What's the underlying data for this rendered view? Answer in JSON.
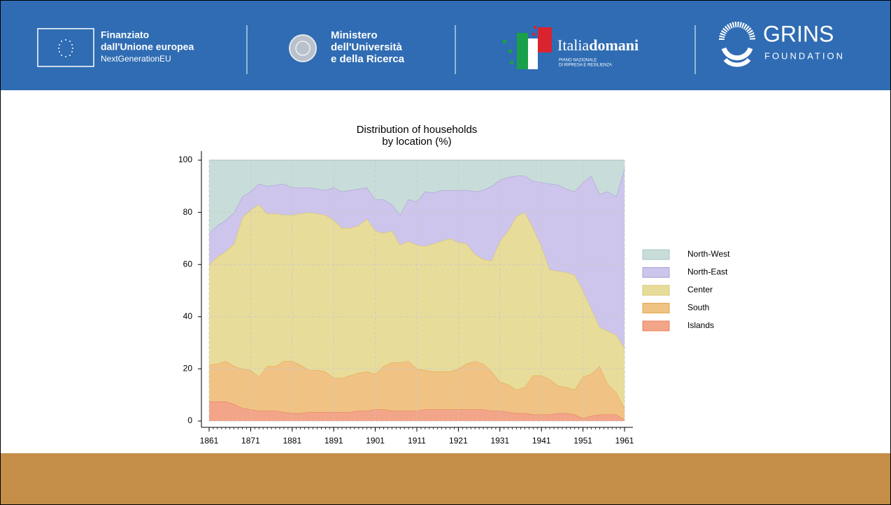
{
  "header": {
    "eu": [
      "Finanziato",
      "dall'Unione europea",
      "NextGenerationEU"
    ],
    "ministry": [
      "Ministero",
      "dell'Università",
      "e della Ricerca"
    ],
    "italiadomani": {
      "light": "Italia",
      "bold": "domani",
      "sub": [
        "PIANO NAZIONALE",
        "DI RIPRESA E RESILIENZA"
      ]
    },
    "grins": {
      "name": "GRINS",
      "sub": "FOUNDATION"
    }
  },
  "chart_data": {
    "type": "stacked_area",
    "title": [
      "Distribution of households",
      "by location (%)"
    ],
    "x": [
      1861,
      1863,
      1865,
      1867,
      1869,
      1871,
      1873,
      1875,
      1877,
      1879,
      1881,
      1883,
      1885,
      1887,
      1889,
      1891,
      1893,
      1895,
      1897,
      1899,
      1901,
      1903,
      1905,
      1907,
      1909,
      1911,
      1913,
      1915,
      1917,
      1919,
      1921,
      1923,
      1925,
      1927,
      1929,
      1931,
      1933,
      1935,
      1937,
      1939,
      1941,
      1943,
      1945,
      1947,
      1949,
      1951,
      1953,
      1955,
      1957,
      1959,
      1961
    ],
    "series": [
      {
        "name": "Islands",
        "color": "#f2a588",
        "stroke": "#e8825e",
        "values": [
          7.5,
          7.5,
          7.5,
          6.5,
          5,
          4.5,
          4,
          4,
          4,
          3.5,
          3,
          3,
          3.5,
          3.5,
          3.5,
          3.5,
          3.5,
          3.5,
          4,
          4,
          4.5,
          4.5,
          4,
          4,
          4,
          4,
          4.5,
          4.5,
          4.5,
          4.5,
          4.5,
          4.5,
          4.5,
          4.5,
          4,
          4,
          3.5,
          3,
          3,
          2.5,
          2.5,
          2.5,
          3,
          3,
          2.5,
          1,
          2,
          2.5,
          2.5,
          2.5,
          0.5
        ]
      },
      {
        "name": "South",
        "color": "#f0c385",
        "stroke": "#e6a650",
        "values": [
          14,
          14.5,
          15.5,
          14.5,
          15,
          15,
          13,
          17,
          17,
          19.5,
          20,
          18.5,
          16,
          16,
          15.5,
          13,
          13,
          14,
          14.5,
          15,
          13.5,
          16.5,
          18.5,
          18.5,
          19,
          16,
          15,
          14.5,
          14.5,
          14.5,
          15.5,
          17.5,
          18.5,
          17.5,
          15,
          11,
          10.5,
          9,
          10,
          15,
          15,
          13.5,
          10.5,
          10,
          9.5,
          16,
          16,
          18.5,
          11.5,
          8.5,
          4.5
        ]
      },
      {
        "name": "Center",
        "color": "#e8dc9a",
        "stroke": "#d6c470",
        "values": [
          38.5,
          41,
          42,
          47,
          58,
          61.5,
          66,
          58.5,
          58.5,
          56,
          56,
          58,
          60.5,
          60,
          60,
          60.5,
          57.5,
          56.5,
          56.5,
          58.5,
          55,
          51,
          50.5,
          45,
          46,
          47.5,
          47.5,
          49,
          50,
          51,
          48.5,
          46,
          41,
          40,
          42.5,
          54,
          59,
          66.5,
          67,
          56.5,
          49.5,
          42,
          44,
          44,
          44,
          33,
          25,
          15,
          20.5,
          22,
          23
        ]
      },
      {
        "name": "North-East",
        "color": "#cdc5eb",
        "stroke": "#aaa0d8",
        "values": [
          12,
          12,
          12,
          12,
          8,
          7,
          8,
          10.5,
          11,
          12,
          10.5,
          10,
          9.5,
          9.5,
          9.5,
          12.5,
          14,
          14.5,
          14,
          12,
          12,
          13,
          10,
          11.5,
          16,
          16.5,
          21,
          19.5,
          19.5,
          18.5,
          20,
          20.5,
          24,
          26.5,
          28.5,
          23.5,
          20.5,
          15.5,
          14,
          18,
          24.5,
          33,
          33,
          32,
          32,
          41.5,
          51,
          51,
          53.5,
          53,
          69
        ]
      },
      {
        "name": "North-West",
        "color": "#c8ddd9",
        "stroke": "#a8c4c0",
        "values": [
          28,
          25,
          23,
          20,
          14,
          12,
          9,
          10,
          9.5,
          9,
          10.5,
          10.5,
          10.5,
          11,
          11.5,
          10.5,
          12,
          11.5,
          11,
          10.5,
          15,
          15,
          17,
          21,
          15,
          16,
          12,
          12.5,
          11.5,
          11.5,
          11.5,
          11.5,
          12,
          11.5,
          10,
          7.5,
          6.5,
          6,
          6,
          8,
          8.5,
          9,
          9.5,
          11,
          12,
          8.5,
          6,
          13,
          12,
          14,
          3
        ]
      }
    ],
    "xlim": [
      1861,
      1961
    ],
    "xticks": [
      1861,
      1871,
      1881,
      1891,
      1901,
      1911,
      1921,
      1931,
      1941,
      1951,
      1961
    ],
    "ylim": [
      0,
      100
    ],
    "yticks": [
      0,
      20,
      40,
      60,
      80,
      100
    ],
    "grid": true,
    "legend": "right"
  }
}
